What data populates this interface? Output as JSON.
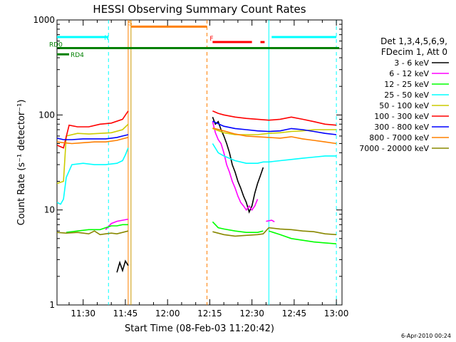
{
  "chart_data": {
    "type": "line",
    "title": "HESSI Observing Summary Count Rates",
    "xlabel": "Start Time (08-Feb-03 11:20:42)",
    "ylabel": "Count Rate (s⁻¹ detector⁻¹)",
    "yscale": "log",
    "ylim": [
      1,
      1000
    ],
    "xlim_minutes_from_1100": [
      20.7,
      122.0
    ],
    "x_tick_labels": [
      "11:30",
      "11:45",
      "12:00",
      "12:15",
      "12:30",
      "12:45",
      "13:00"
    ],
    "x_tick_minutes": [
      30,
      45,
      60,
      75,
      90,
      105,
      120
    ],
    "y_tick_labels": [
      "1",
      "10",
      "100",
      "1000"
    ],
    "y_tick_values": [
      1,
      10,
      100,
      1000
    ],
    "legend": {
      "header": [
        "Det 1,3,4,5,6,9,",
        "FDecim 1, Att 0"
      ],
      "position": "right"
    },
    "series": [
      {
        "name": "3 - 6 keV",
        "color": "#000000",
        "segments": [
          [
            [
              42,
              2.2
            ],
            [
              43,
              2.8
            ],
            [
              44,
              2.3
            ],
            [
              45,
              2.9
            ],
            [
              46,
              2.6
            ]
          ],
          [
            [
              76,
              95
            ],
            [
              77,
              80
            ],
            [
              78,
              85
            ],
            [
              79,
              70
            ],
            [
              80,
              60
            ],
            [
              81,
              50
            ],
            [
              82,
              40
            ],
            [
              83,
              30
            ],
            [
              84,
              25
            ],
            [
              85,
              20
            ],
            [
              86,
              17
            ],
            [
              87,
              14
            ],
            [
              88,
              12
            ],
            [
              89,
              9.5
            ],
            [
              90,
              11
            ],
            [
              91,
              15
            ],
            [
              92,
              19
            ],
            [
              93,
              23
            ],
            [
              94,
              28
            ]
          ]
        ]
      },
      {
        "name": "6 - 12 keV",
        "color": "#ff00ff",
        "segments": [
          [
            [
              38,
              6.2
            ],
            [
              40,
              7.2
            ],
            [
              42,
              7.6
            ],
            [
              44,
              7.8
            ],
            [
              46,
              8.0
            ]
          ],
          [
            [
              76,
              85
            ],
            [
              77,
              65
            ],
            [
              78,
              55
            ],
            [
              79,
              50
            ],
            [
              80,
              40
            ],
            [
              81,
              30
            ],
            [
              82,
              25
            ],
            [
              83,
              20
            ],
            [
              84,
              17
            ],
            [
              85,
              14
            ],
            [
              86,
              12
            ],
            [
              87,
              11
            ],
            [
              88,
              10
            ],
            [
              89,
              11
            ],
            [
              90,
              10
            ],
            [
              91,
              11
            ],
            [
              92,
              13
            ]
          ],
          [
            [
              95,
              7.6
            ],
            [
              97,
              7.8
            ],
            [
              98,
              7.5
            ]
          ]
        ]
      },
      {
        "name": "12 - 25 keV",
        "color": "#00ff00",
        "segments": [
          [
            [
              24,
              5.8
            ],
            [
              28,
              6.0
            ],
            [
              32,
              6.2
            ],
            [
              36,
              6.2
            ],
            [
              38,
              6.5
            ],
            [
              40,
              6.8
            ],
            [
              42,
              6.8
            ],
            [
              44,
              7.0
            ],
            [
              46,
              7.0
            ]
          ],
          [
            [
              76,
              7.5
            ],
            [
              78,
              6.5
            ],
            [
              80,
              6.3
            ],
            [
              84,
              6.0
            ],
            [
              88,
              5.8
            ],
            [
              92,
              5.8
            ],
            [
              94,
              6.0
            ]
          ],
          [
            [
              96,
              6.0
            ],
            [
              100,
              5.5
            ],
            [
              104,
              5.0
            ],
            [
              108,
              4.8
            ],
            [
              112,
              4.6
            ],
            [
              116,
              4.5
            ],
            [
              120,
              4.4
            ]
          ]
        ]
      },
      {
        "name": "25 - 50 keV",
        "color": "#00ffff",
        "segments": [
          [
            [
              20.7,
              12
            ],
            [
              22,
              11.5
            ],
            [
              23,
              13
            ],
            [
              24,
              22
            ],
            [
              26,
              30
            ],
            [
              30,
              31
            ],
            [
              34,
              30
            ],
            [
              38,
              30
            ],
            [
              42,
              31
            ],
            [
              44,
              33
            ],
            [
              45,
              38
            ],
            [
              46,
              45
            ]
          ],
          [
            [
              76,
              50
            ],
            [
              78,
              40
            ],
            [
              80,
              37
            ],
            [
              84,
              33
            ],
            [
              88,
              31
            ],
            [
              92,
              31
            ],
            [
              94,
              32
            ],
            [
              96,
              32
            ],
            [
              100,
              33
            ],
            [
              104,
              34
            ],
            [
              108,
              35
            ],
            [
              112,
              36
            ],
            [
              116,
              37
            ],
            [
              120,
              37
            ]
          ]
        ]
      },
      {
        "name": "50 - 100 keV",
        "color": "#cccc00",
        "segments": [
          [
            [
              20.7,
              19
            ],
            [
              23,
              20
            ],
            [
              24,
              60
            ],
            [
              28,
              64
            ],
            [
              32,
              63
            ],
            [
              36,
              64
            ],
            [
              40,
              65
            ],
            [
              44,
              70
            ],
            [
              46,
              80
            ]
          ],
          [
            [
              76,
              72
            ],
            [
              80,
              65
            ],
            [
              84,
              62
            ],
            [
              88,
              62
            ],
            [
              92,
              62
            ],
            [
              96,
              64
            ],
            [
              100,
              65
            ],
            [
              104,
              67
            ],
            [
              108,
              68
            ],
            [
              112,
              70
            ],
            [
              116,
              70
            ],
            [
              120,
              70
            ]
          ]
        ]
      },
      {
        "name": "100 - 300 keV",
        "color": "#ff0000",
        "segments": [
          [
            [
              20.7,
              48
            ],
            [
              23,
              45
            ],
            [
              25,
              78
            ],
            [
              28,
              75
            ],
            [
              32,
              75
            ],
            [
              36,
              80
            ],
            [
              40,
              82
            ],
            [
              44,
              90
            ],
            [
              46,
              110
            ]
          ],
          [
            [
              76,
              110
            ],
            [
              78,
              104
            ],
            [
              80,
              100
            ],
            [
              84,
              95
            ],
            [
              88,
              92
            ],
            [
              92,
              90
            ],
            [
              96,
              88
            ],
            [
              100,
              90
            ],
            [
              104,
              95
            ],
            [
              108,
              90
            ],
            [
              112,
              85
            ],
            [
              116,
              80
            ],
            [
              120,
              78
            ]
          ]
        ]
      },
      {
        "name": "300 - 800 keV",
        "color": "#0000ff",
        "segments": [
          [
            [
              20.7,
              57
            ],
            [
              23,
              55
            ],
            [
              26,
              55
            ],
            [
              30,
              56
            ],
            [
              34,
              56
            ],
            [
              38,
              56
            ],
            [
              42,
              58
            ],
            [
              44,
              60
            ],
            [
              46,
              62
            ]
          ],
          [
            [
              76,
              86
            ],
            [
              80,
              76
            ],
            [
              84,
              72
            ],
            [
              88,
              70
            ],
            [
              92,
              68
            ],
            [
              96,
              67
            ],
            [
              100,
              68
            ],
            [
              104,
              72
            ],
            [
              108,
              70
            ],
            [
              112,
              67
            ],
            [
              116,
              64
            ],
            [
              120,
              62
            ]
          ]
        ]
      },
      {
        "name": "800 - 7000 keV",
        "color": "#ff8000",
        "segments": [
          [
            [
              20.7,
              52
            ],
            [
              23,
              51
            ],
            [
              26,
              50
            ],
            [
              30,
              51
            ],
            [
              34,
              52
            ],
            [
              38,
              52
            ],
            [
              42,
              54
            ],
            [
              44,
              56
            ],
            [
              46,
              58
            ]
          ],
          [
            [
              76,
              73
            ],
            [
              80,
              68
            ],
            [
              84,
              63
            ],
            [
              88,
              60
            ],
            [
              92,
              59
            ],
            [
              96,
              58
            ],
            [
              100,
              57
            ],
            [
              104,
              59
            ],
            [
              108,
              56
            ],
            [
              112,
              54
            ],
            [
              116,
              52
            ],
            [
              120,
              50
            ]
          ]
        ]
      },
      {
        "name": "7000 - 20000 keV",
        "color": "#888800",
        "segments": [
          [
            [
              20.7,
              5.8
            ],
            [
              24,
              5.7
            ],
            [
              28,
              5.8
            ],
            [
              32,
              5.6
            ],
            [
              34,
              6.0
            ],
            [
              36,
              5.5
            ],
            [
              38,
              5.6
            ],
            [
              40,
              5.7
            ],
            [
              42,
              5.6
            ],
            [
              44,
              5.8
            ],
            [
              46,
              6.0
            ]
          ],
          [
            [
              76,
              5.9
            ],
            [
              80,
              5.5
            ],
            [
              84,
              5.3
            ],
            [
              88,
              5.4
            ],
            [
              92,
              5.5
            ],
            [
              94,
              5.6
            ],
            [
              96,
              6.5
            ],
            [
              100,
              6.3
            ],
            [
              104,
              6.2
            ],
            [
              108,
              6.0
            ],
            [
              112,
              5.9
            ],
            [
              116,
              5.6
            ],
            [
              120,
              5.5
            ]
          ]
        ]
      }
    ],
    "status_bars": [
      {
        "label": "N",
        "color": "#00ffff",
        "y_value": 660,
        "segments": [
          [
            20.7,
            39
          ],
          [
            97,
            120
          ]
        ]
      },
      {
        "label": "S",
        "color": "#ff8000",
        "y_value": 850,
        "segments": [
          [
            47,
            74
          ]
        ]
      },
      {
        "label": "F",
        "color": "#ff0000",
        "y_value": 585,
        "segments": [
          [
            76,
            90
          ],
          [
            93,
            94.5
          ]
        ]
      },
      {
        "label": "RD0",
        "color": "#008000",
        "y_value": 505,
        "segments": [
          [
            20.7,
            121
          ]
        ]
      },
      {
        "label": "RD4",
        "color": "#008000",
        "y_value": 435,
        "segments": [
          [
            20.7,
            25
          ]
        ]
      }
    ],
    "vertical_markers": [
      {
        "x": 39.0,
        "color": "#00ffff",
        "style": "dashed"
      },
      {
        "x": 46.0,
        "color": "#ff8000",
        "style": "solid"
      },
      {
        "x": 47.0,
        "color": "#cc9900",
        "style": "solid"
      },
      {
        "x": 74.0,
        "color": "#ff8000",
        "style": "dashed"
      },
      {
        "x": 96.0,
        "color": "#00ffff",
        "style": "solid"
      },
      {
        "x": 120.0,
        "color": "#00ffff",
        "style": "dashed"
      }
    ],
    "footer_timestamp": "6-Apr-2010 00:24"
  }
}
